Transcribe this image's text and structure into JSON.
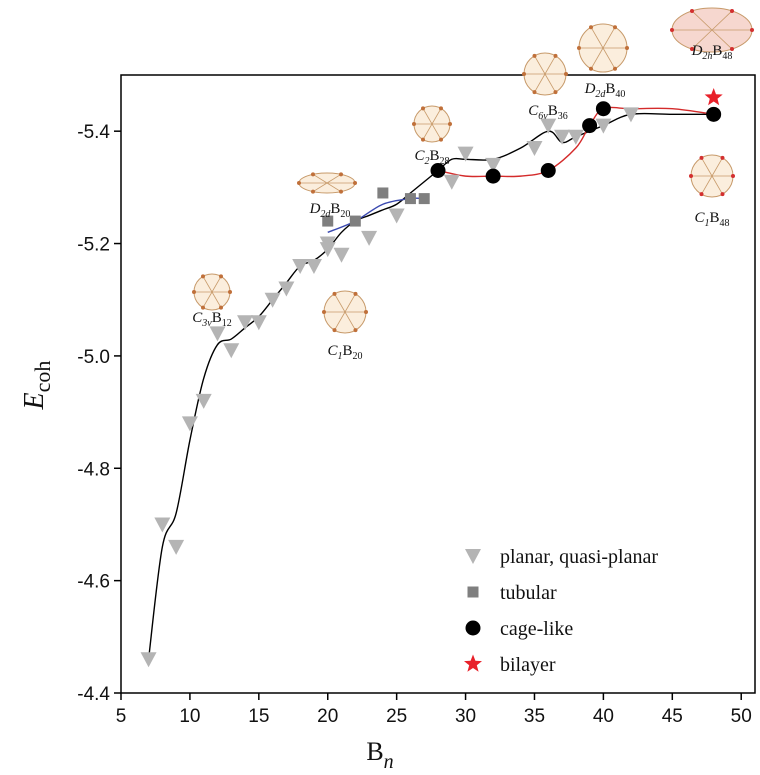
{
  "chart_data": {
    "type": "scatter",
    "x_label": {
      "text": "B",
      "sub": "n"
    },
    "y_label": {
      "text": "E",
      "sub": "coh"
    },
    "xlim": [
      5,
      51
    ],
    "xticks": [
      5,
      10,
      15,
      20,
      25,
      30,
      35,
      40,
      45,
      50
    ],
    "ylim": [
      -4.4,
      -5.5
    ],
    "yticks": [
      -4.4,
      -4.6,
      -4.8,
      {
        "value": -5,
        "label": "-5.0"
      },
      -5.2,
      -5.4
    ],
    "legend": "lower right",
    "series": [
      {
        "name": "planar, quasi-planar",
        "color": "#b4b4b4",
        "marker": "triangle-down",
        "x": [
          7,
          8,
          9,
          10,
          11,
          12,
          13,
          14,
          15,
          16,
          17,
          18,
          19,
          20,
          20,
          21,
          23,
          25,
          29,
          30,
          32,
          35,
          36,
          37,
          38,
          40,
          42
        ],
        "values": [
          -4.46,
          -4.7,
          -4.66,
          -4.88,
          -4.92,
          -5.04,
          -5.01,
          -5.06,
          -5.06,
          -5.1,
          -5.12,
          -5.16,
          -5.16,
          -5.2,
          -5.19,
          -5.18,
          -5.21,
          -5.25,
          -5.31,
          -5.36,
          -5.34,
          -5.37,
          -5.41,
          -5.39,
          -5.39,
          -5.41,
          -5.43
        ]
      },
      {
        "name": "tubular",
        "color": "#7f7f7f",
        "marker": "square",
        "x": [
          20,
          22,
          24,
          26,
          27
        ],
        "values": [
          -5.24,
          -5.24,
          -5.29,
          -5.28,
          -5.28
        ]
      },
      {
        "name": "cage-like",
        "color": "#000000",
        "marker": "circle",
        "x": [
          28,
          32,
          36,
          39,
          40,
          48
        ],
        "values": [
          -5.33,
          -5.32,
          -5.33,
          -5.41,
          -5.44,
          -5.43
        ]
      },
      {
        "name": "bilayer",
        "color": "#e8212a",
        "marker": "star",
        "x": [
          48
        ],
        "values": [
          -5.46
        ]
      }
    ],
    "curves": [
      {
        "color": "#000000",
        "x": [
          7,
          8,
          9,
          10,
          11,
          12,
          13,
          14,
          15,
          16,
          17,
          18,
          19,
          20,
          21,
          22,
          23,
          24,
          25,
          26,
          27,
          28,
          29,
          30,
          32,
          34,
          36,
          37,
          38,
          40,
          42,
          45,
          48
        ],
        "values": [
          -4.46,
          -4.66,
          -4.72,
          -4.85,
          -4.96,
          -5.02,
          -5.03,
          -5.05,
          -5.07,
          -5.1,
          -5.13,
          -5.16,
          -5.17,
          -5.19,
          -5.22,
          -5.24,
          -5.25,
          -5.26,
          -5.27,
          -5.29,
          -5.31,
          -5.33,
          -5.35,
          -5.35,
          -5.35,
          -5.37,
          -5.4,
          -5.38,
          -5.39,
          -5.41,
          -5.43,
          -5.43,
          -5.43
        ]
      },
      {
        "color": "#3a49b0",
        "x": [
          20,
          22,
          24,
          26,
          27
        ],
        "values": [
          -5.22,
          -5.24,
          -5.27,
          -5.28,
          -5.28
        ]
      },
      {
        "color": "#d42b2b",
        "x": [
          28,
          30,
          32,
          34,
          36,
          38,
          39,
          40,
          42,
          45,
          48
        ],
        "values": [
          -5.33,
          -5.32,
          -5.32,
          -5.32,
          -5.33,
          -5.37,
          -5.41,
          -5.44,
          -5.44,
          -5.44,
          -5.43
        ]
      }
    ],
    "annotations": [
      {
        "point_group": "C",
        "point_group_sub": "3v",
        "formula": "B",
        "formula_sub": "12"
      },
      {
        "point_group": "C",
        "point_group_sub": "1",
        "formula": "B",
        "formula_sub": "20"
      },
      {
        "point_group": "D",
        "point_group_sub": "2d",
        "formula": "B",
        "formula_sub": "20"
      },
      {
        "point_group": "C",
        "point_group_sub": "2",
        "formula": "B",
        "formula_sub": "28"
      },
      {
        "point_group": "C",
        "point_group_sub": "6v",
        "formula": "B",
        "formula_sub": "36"
      },
      {
        "point_group": "D",
        "point_group_sub": "2d",
        "formula": "B",
        "formula_sub": "40"
      },
      {
        "point_group": "D",
        "point_group_sub": "2h",
        "formula": "B",
        "formula_sub": "48"
      },
      {
        "point_group": "C",
        "point_group_sub": "1",
        "formula": "B",
        "formula_sub": "48"
      }
    ]
  }
}
